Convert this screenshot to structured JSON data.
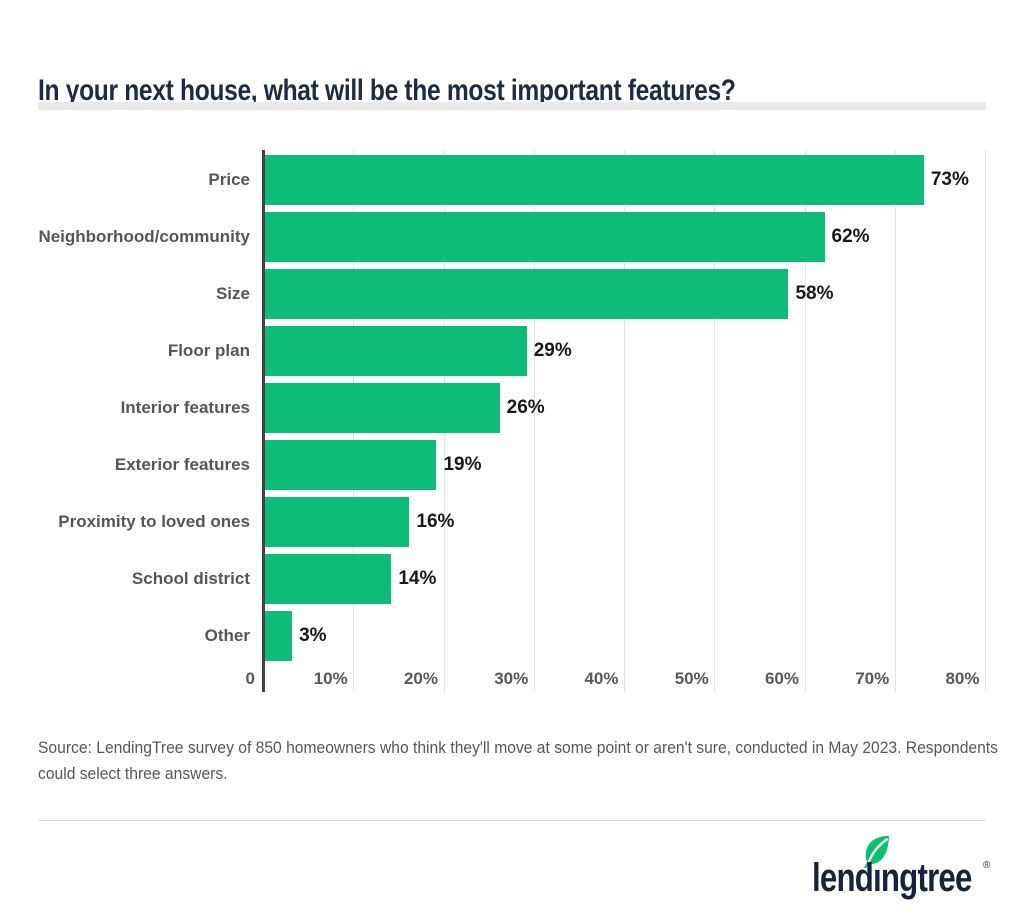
{
  "title": "In your next house, what will be the most important features?",
  "chart_data": {
    "type": "bar",
    "orientation": "horizontal",
    "title": "In your next house, what will be the most important features?",
    "categories": [
      "Price",
      "Neighborhood/community",
      "Size",
      "Floor plan",
      "Interior features",
      "Exterior features",
      "Proximity to loved ones",
      "School district",
      "Other"
    ],
    "values": [
      73,
      62,
      58,
      29,
      26,
      19,
      16,
      14,
      3
    ],
    "value_labels": [
      "73%",
      "62%",
      "58%",
      "29%",
      "26%",
      "19%",
      "16%",
      "14%",
      "3%"
    ],
    "xlim": [
      0,
      80
    ],
    "x_ticks": [
      0,
      10,
      20,
      30,
      40,
      50,
      60,
      70,
      80
    ],
    "x_tick_labels": [
      "0",
      "10%",
      "20%",
      "30%",
      "40%",
      "50%",
      "60%",
      "70%",
      "80%"
    ],
    "grid": "vertical",
    "legend": "none",
    "bar_color": "#0dbc79"
  },
  "source": {
    "full_text": "Source: LendingTree survey of 850 homeowners who think they'll move at some point or aren't sure, conducted in May 2023. Respondents could select three answers.",
    "lines": [
      "Source: LendingTree survey of 850 homeowners who think they'll move at some point or aren't sure, conducted in May 2023. Respondents",
      "could select three answers."
    ]
  },
  "footer": {
    "brand": "lendingtree",
    "wordmark_display": "lendıngtree",
    "registered_mark": "®"
  },
  "colors": {
    "bar_green": "#0dbc79",
    "leaf_green": "#0cc06e",
    "title_navy": "#1d2c45",
    "logo_navy": "#15243c",
    "label_gray": "#54565b",
    "value_black": "#15181c",
    "axis_dark": "#3f4145",
    "gridline_gray": "#e3e3e3",
    "title_rule_gray": "#e9e9e9",
    "footer_rule_gray": "#d9d9d9"
  }
}
